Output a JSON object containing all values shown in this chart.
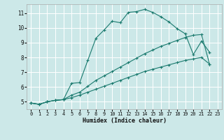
{
  "xlabel": "Humidex (Indice chaleur)",
  "bg_color": "#cce8e8",
  "grid_color": "#ffffff",
  "line_color": "#1a7a6e",
  "xlim": [
    -0.5,
    23.5
  ],
  "ylim": [
    4.5,
    11.6
  ],
  "xticks": [
    0,
    1,
    2,
    3,
    4,
    5,
    6,
    7,
    8,
    9,
    10,
    11,
    12,
    13,
    14,
    15,
    16,
    17,
    18,
    19,
    20,
    21,
    22,
    23
  ],
  "yticks": [
    5,
    6,
    7,
    8,
    9,
    10,
    11
  ],
  "line1_x": [
    0,
    1,
    2,
    3,
    4,
    5,
    6,
    7,
    8,
    9,
    10,
    11,
    12,
    13,
    14,
    15,
    16,
    17,
    18,
    19,
    20,
    21,
    22
  ],
  "line1_y": [
    4.92,
    4.83,
    5.0,
    5.1,
    5.15,
    6.25,
    6.3,
    7.8,
    9.3,
    9.85,
    10.45,
    10.35,
    11.05,
    11.1,
    11.25,
    11.05,
    10.75,
    10.4,
    9.95,
    9.6,
    8.2,
    9.1,
    8.35
  ],
  "line2_x": [
    0,
    1,
    2,
    3,
    4,
    5,
    6,
    7,
    8,
    9,
    10,
    11,
    12,
    13,
    14,
    15,
    16,
    17,
    18,
    19,
    20,
    21,
    22
  ],
  "line2_y": [
    4.92,
    4.83,
    5.0,
    5.1,
    5.15,
    5.45,
    5.65,
    6.05,
    6.45,
    6.75,
    7.05,
    7.35,
    7.65,
    7.95,
    8.25,
    8.5,
    8.75,
    8.95,
    9.15,
    9.35,
    9.5,
    9.55,
    7.55
  ],
  "line3_x": [
    0,
    1,
    2,
    3,
    4,
    5,
    6,
    7,
    8,
    9,
    10,
    11,
    12,
    13,
    14,
    15,
    16,
    17,
    18,
    19,
    20,
    21,
    22
  ],
  "line3_y": [
    4.92,
    4.83,
    5.0,
    5.1,
    5.15,
    5.28,
    5.45,
    5.65,
    5.85,
    6.05,
    6.25,
    6.45,
    6.65,
    6.85,
    7.05,
    7.2,
    7.35,
    7.5,
    7.65,
    7.8,
    7.9,
    8.0,
    7.55
  ]
}
